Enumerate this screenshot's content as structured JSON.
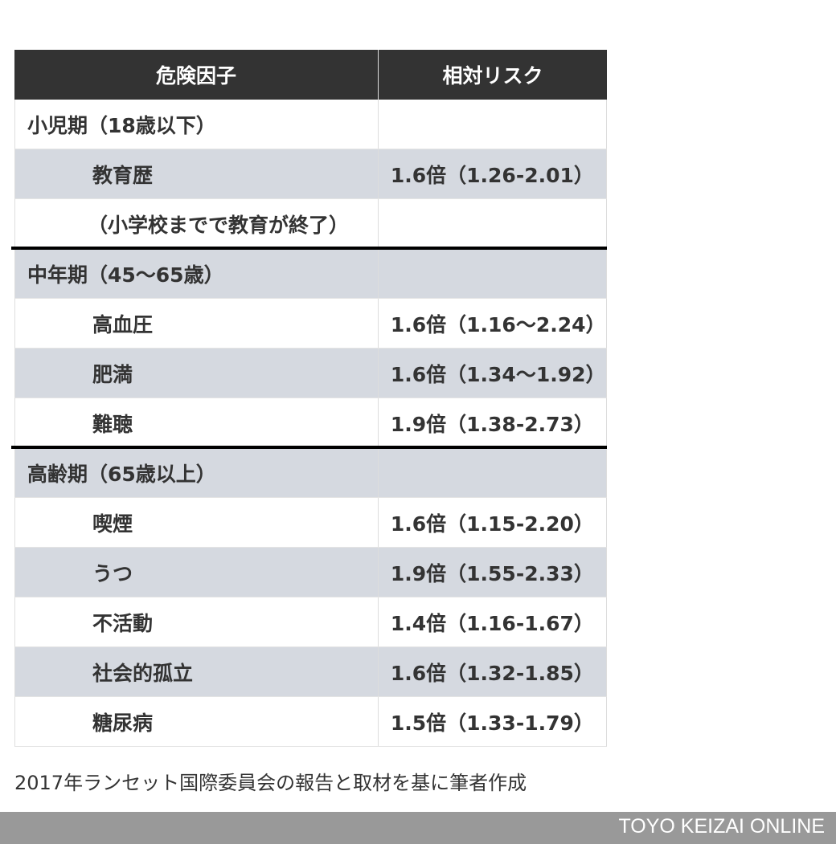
{
  "table": {
    "headers": [
      "危険因子",
      "相対リスク"
    ],
    "rows": [
      {
        "type": "group",
        "factor": "小児期（18歳以下）",
        "risk": ""
      },
      {
        "type": "item",
        "factor": "教育歴",
        "risk": "1.6倍（1.26-2.01）"
      },
      {
        "type": "note",
        "factor": "（小学校までで教育が終了）",
        "risk": ""
      },
      {
        "type": "group",
        "factor": "中年期（45～65歳）",
        "risk": "",
        "divider_before": true
      },
      {
        "type": "item",
        "factor": "高血圧",
        "risk": "1.6倍（1.16～2.24）"
      },
      {
        "type": "item",
        "factor": "肥満",
        "risk": "1.6倍（1.34～1.92）"
      },
      {
        "type": "item",
        "factor": "難聴",
        "risk": "1.9倍（1.38-2.73）"
      },
      {
        "type": "group",
        "factor": "高齢期（65歳以上）",
        "risk": "",
        "divider_before": true
      },
      {
        "type": "item",
        "factor": "喫煙",
        "risk": "1.6倍（1.15-2.20）"
      },
      {
        "type": "item",
        "factor": "うつ",
        "risk": "1.9倍（1.55-2.33）"
      },
      {
        "type": "item",
        "factor": "不活動",
        "risk": "1.4倍（1.16-1.67）"
      },
      {
        "type": "item",
        "factor": "社会的孤立",
        "risk": "1.6倍（1.32-1.85）"
      },
      {
        "type": "item",
        "factor": "糖尿病",
        "risk": "1.5倍（1.33-1.79）"
      }
    ]
  },
  "caption": "2017年ランセット国際委員会の報告と取材を基に筆者作成",
  "footer": "TOYO KEIZAI ONLINE",
  "colors": {
    "header_bg": "#333333",
    "alt_row_bg": "#d5d9e0",
    "footer_bg": "#999999"
  }
}
